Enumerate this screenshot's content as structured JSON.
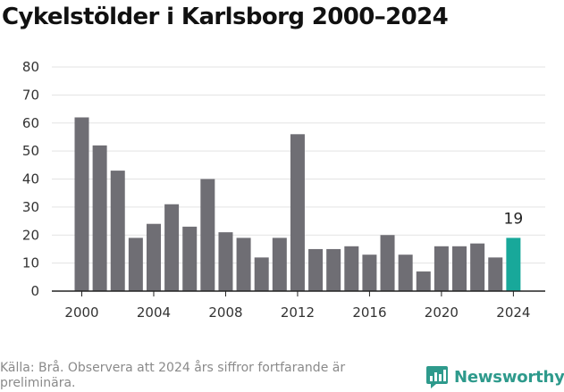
{
  "title": "Cykelstölder i Karlsborg 2000–2024",
  "source": "Källa: Brå. Observera att 2024 års siffror fortfarande är preliminära.",
  "brand": {
    "name": "Newsworthy",
    "icon": "newsworthy-logo-icon"
  },
  "colors": {
    "bar": "#6f6e74",
    "highlight": "#18a89a",
    "grid": "#e3e3e3",
    "axis": "#222222"
  },
  "chart_data": {
    "type": "bar",
    "title": "Cykelstölder i Karlsborg 2000–2024",
    "xlabel": "",
    "ylabel": "",
    "ylim": [
      0,
      80
    ],
    "yticks": [
      0,
      10,
      20,
      30,
      40,
      50,
      60,
      70,
      80
    ],
    "xticks": [
      "2000",
      "2004",
      "2008",
      "2012",
      "2016",
      "2020",
      "2024"
    ],
    "categories": [
      "2000",
      "2001",
      "2002",
      "2003",
      "2004",
      "2005",
      "2006",
      "2007",
      "2008",
      "2009",
      "2010",
      "2011",
      "2012",
      "2013",
      "2014",
      "2015",
      "2016",
      "2017",
      "2018",
      "2019",
      "2020",
      "2021",
      "2022",
      "2023",
      "2024"
    ],
    "values": [
      62,
      52,
      43,
      19,
      24,
      31,
      23,
      40,
      21,
      19,
      12,
      19,
      56,
      15,
      15,
      16,
      13,
      20,
      13,
      7,
      16,
      16,
      17,
      12,
      19
    ],
    "highlight": {
      "category": "2024",
      "label": "19"
    }
  }
}
